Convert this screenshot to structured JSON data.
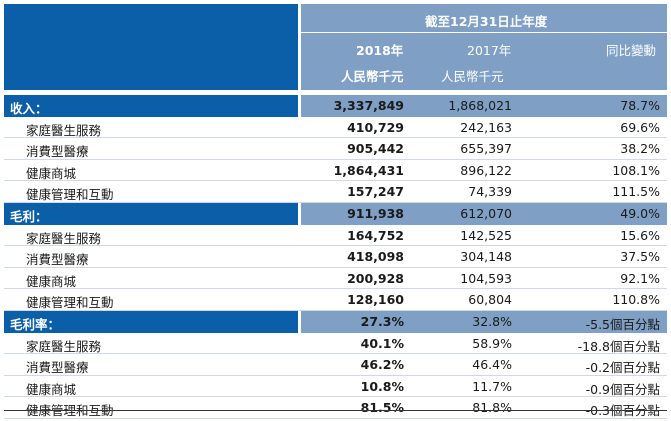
{
  "header": {
    "period": "截至12月31日止年度",
    "year_2018": "2018年",
    "year_2017": "2017年",
    "change": "同比變動",
    "unit_2018": "人民幣千元",
    "unit_2017": "人民幣千元"
  },
  "sections": [
    {
      "label": "收入：",
      "v2018": "3,337,849",
      "v2017": "1,868,021",
      "change": "78.7%",
      "rows": [
        {
          "label": "家庭醫生服務",
          "v2018": "410,729",
          "v2017": "242,163",
          "change": "69.6%"
        },
        {
          "label": "消費型醫療",
          "v2018": "905,442",
          "v2017": "655,397",
          "change": "38.2%"
        },
        {
          "label": "健康商城",
          "v2018": "1,864,431",
          "v2017": "896,122",
          "change": "108.1%"
        },
        {
          "label": "健康管理和互動",
          "v2018": "157,247",
          "v2017": "74,339",
          "change": "111.5%"
        }
      ]
    },
    {
      "label": "毛利：",
      "v2018": "911,938",
      "v2017": "612,070",
      "change": "49.0%",
      "rows": [
        {
          "label": "家庭醫生服務",
          "v2018": "164,752",
          "v2017": "142,525",
          "change": "15.6%"
        },
        {
          "label": "消費型醫療",
          "v2018": "418,098",
          "v2017": "304,148",
          "change": "37.5%"
        },
        {
          "label": "健康商城",
          "v2018": "200,928",
          "v2017": "104,593",
          "change": "92.1%"
        },
        {
          "label": "健康管理和互動",
          "v2018": "128,160",
          "v2017": "60,804",
          "change": "110.8%"
        }
      ]
    },
    {
      "label": "毛利率：",
      "v2018": "27.3%",
      "v2017": "32.8%",
      "change": "-5.5個百分點",
      "rows": [
        {
          "label": "家庭醫生服務",
          "v2018": "40.1%",
          "v2017": "58.9%",
          "change": "-18.8個百分點"
        },
        {
          "label": "消費型醫療",
          "v2018": "46.2%",
          "v2017": "46.4%",
          "change": "-0.2個百分點"
        },
        {
          "label": "健康商城",
          "v2018": "10.8%",
          "v2017": "11.7%",
          "change": "-0.9個百分點"
        },
        {
          "label": "健康管理和互動",
          "v2018": "81.5%",
          "v2017": "81.8%",
          "change": "-0.3個百分點"
        }
      ]
    }
  ]
}
